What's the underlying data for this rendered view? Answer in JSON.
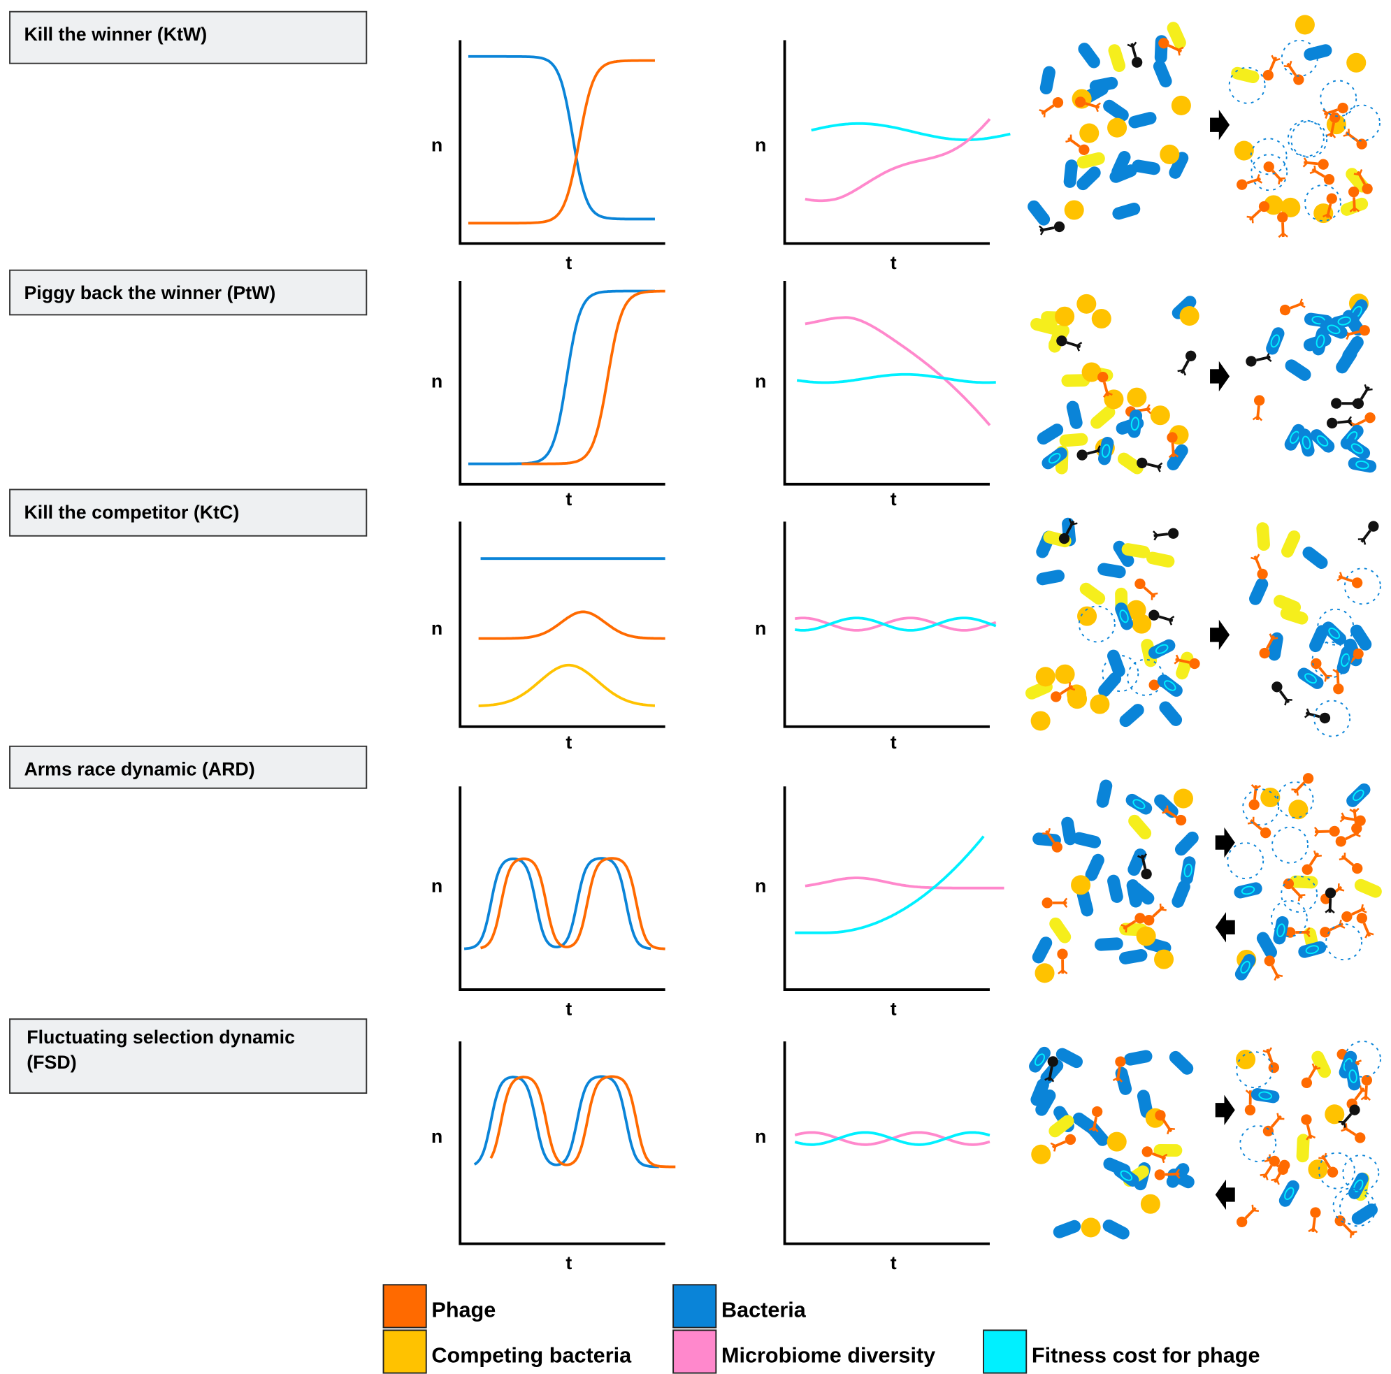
{
  "rows": [
    {
      "title": "Kill the winner (KtW)",
      "panels": [
        {
          "y_label": "n",
          "x_label": "t"
        },
        {
          "y_label": "n",
          "x_label": "t"
        }
      ]
    },
    {
      "title": "Piggy back the winner (PtW)",
      "panels": [
        {
          "y_label": "n",
          "x_label": "t"
        },
        {
          "y_label": "n",
          "x_label": "t"
        }
      ]
    },
    {
      "title": "Kill the competitor (KtC)",
      "panels": [
        {
          "y_label": "n",
          "x_label": "t"
        },
        {
          "y_label": "n",
          "x_label": "t"
        }
      ]
    },
    {
      "title": "Arms race dynamic (ARD)",
      "panels": [
        {
          "y_label": "n",
          "x_label": "t"
        },
        {
          "y_label": "n",
          "x_label": "t"
        }
      ]
    },
    {
      "title": "Fluctuating selection dynamic (FSD)",
      "panels": [
        {
          "y_label": "n",
          "x_label": "t"
        },
        {
          "y_label": "n",
          "x_label": "t"
        }
      ]
    }
  ],
  "legend": [
    {
      "label": "Phage",
      "color": "#ff6a00"
    },
    {
      "label": "Bacteria",
      "color": "#0a84d8"
    },
    {
      "label": "Competing bacteria",
      "color": "#ffc200"
    },
    {
      "label": "Microbiome diversity",
      "color": "#ff88cc"
    },
    {
      "label": "Fitness cost for phage",
      "color": "#00f0ff"
    }
  ]
}
